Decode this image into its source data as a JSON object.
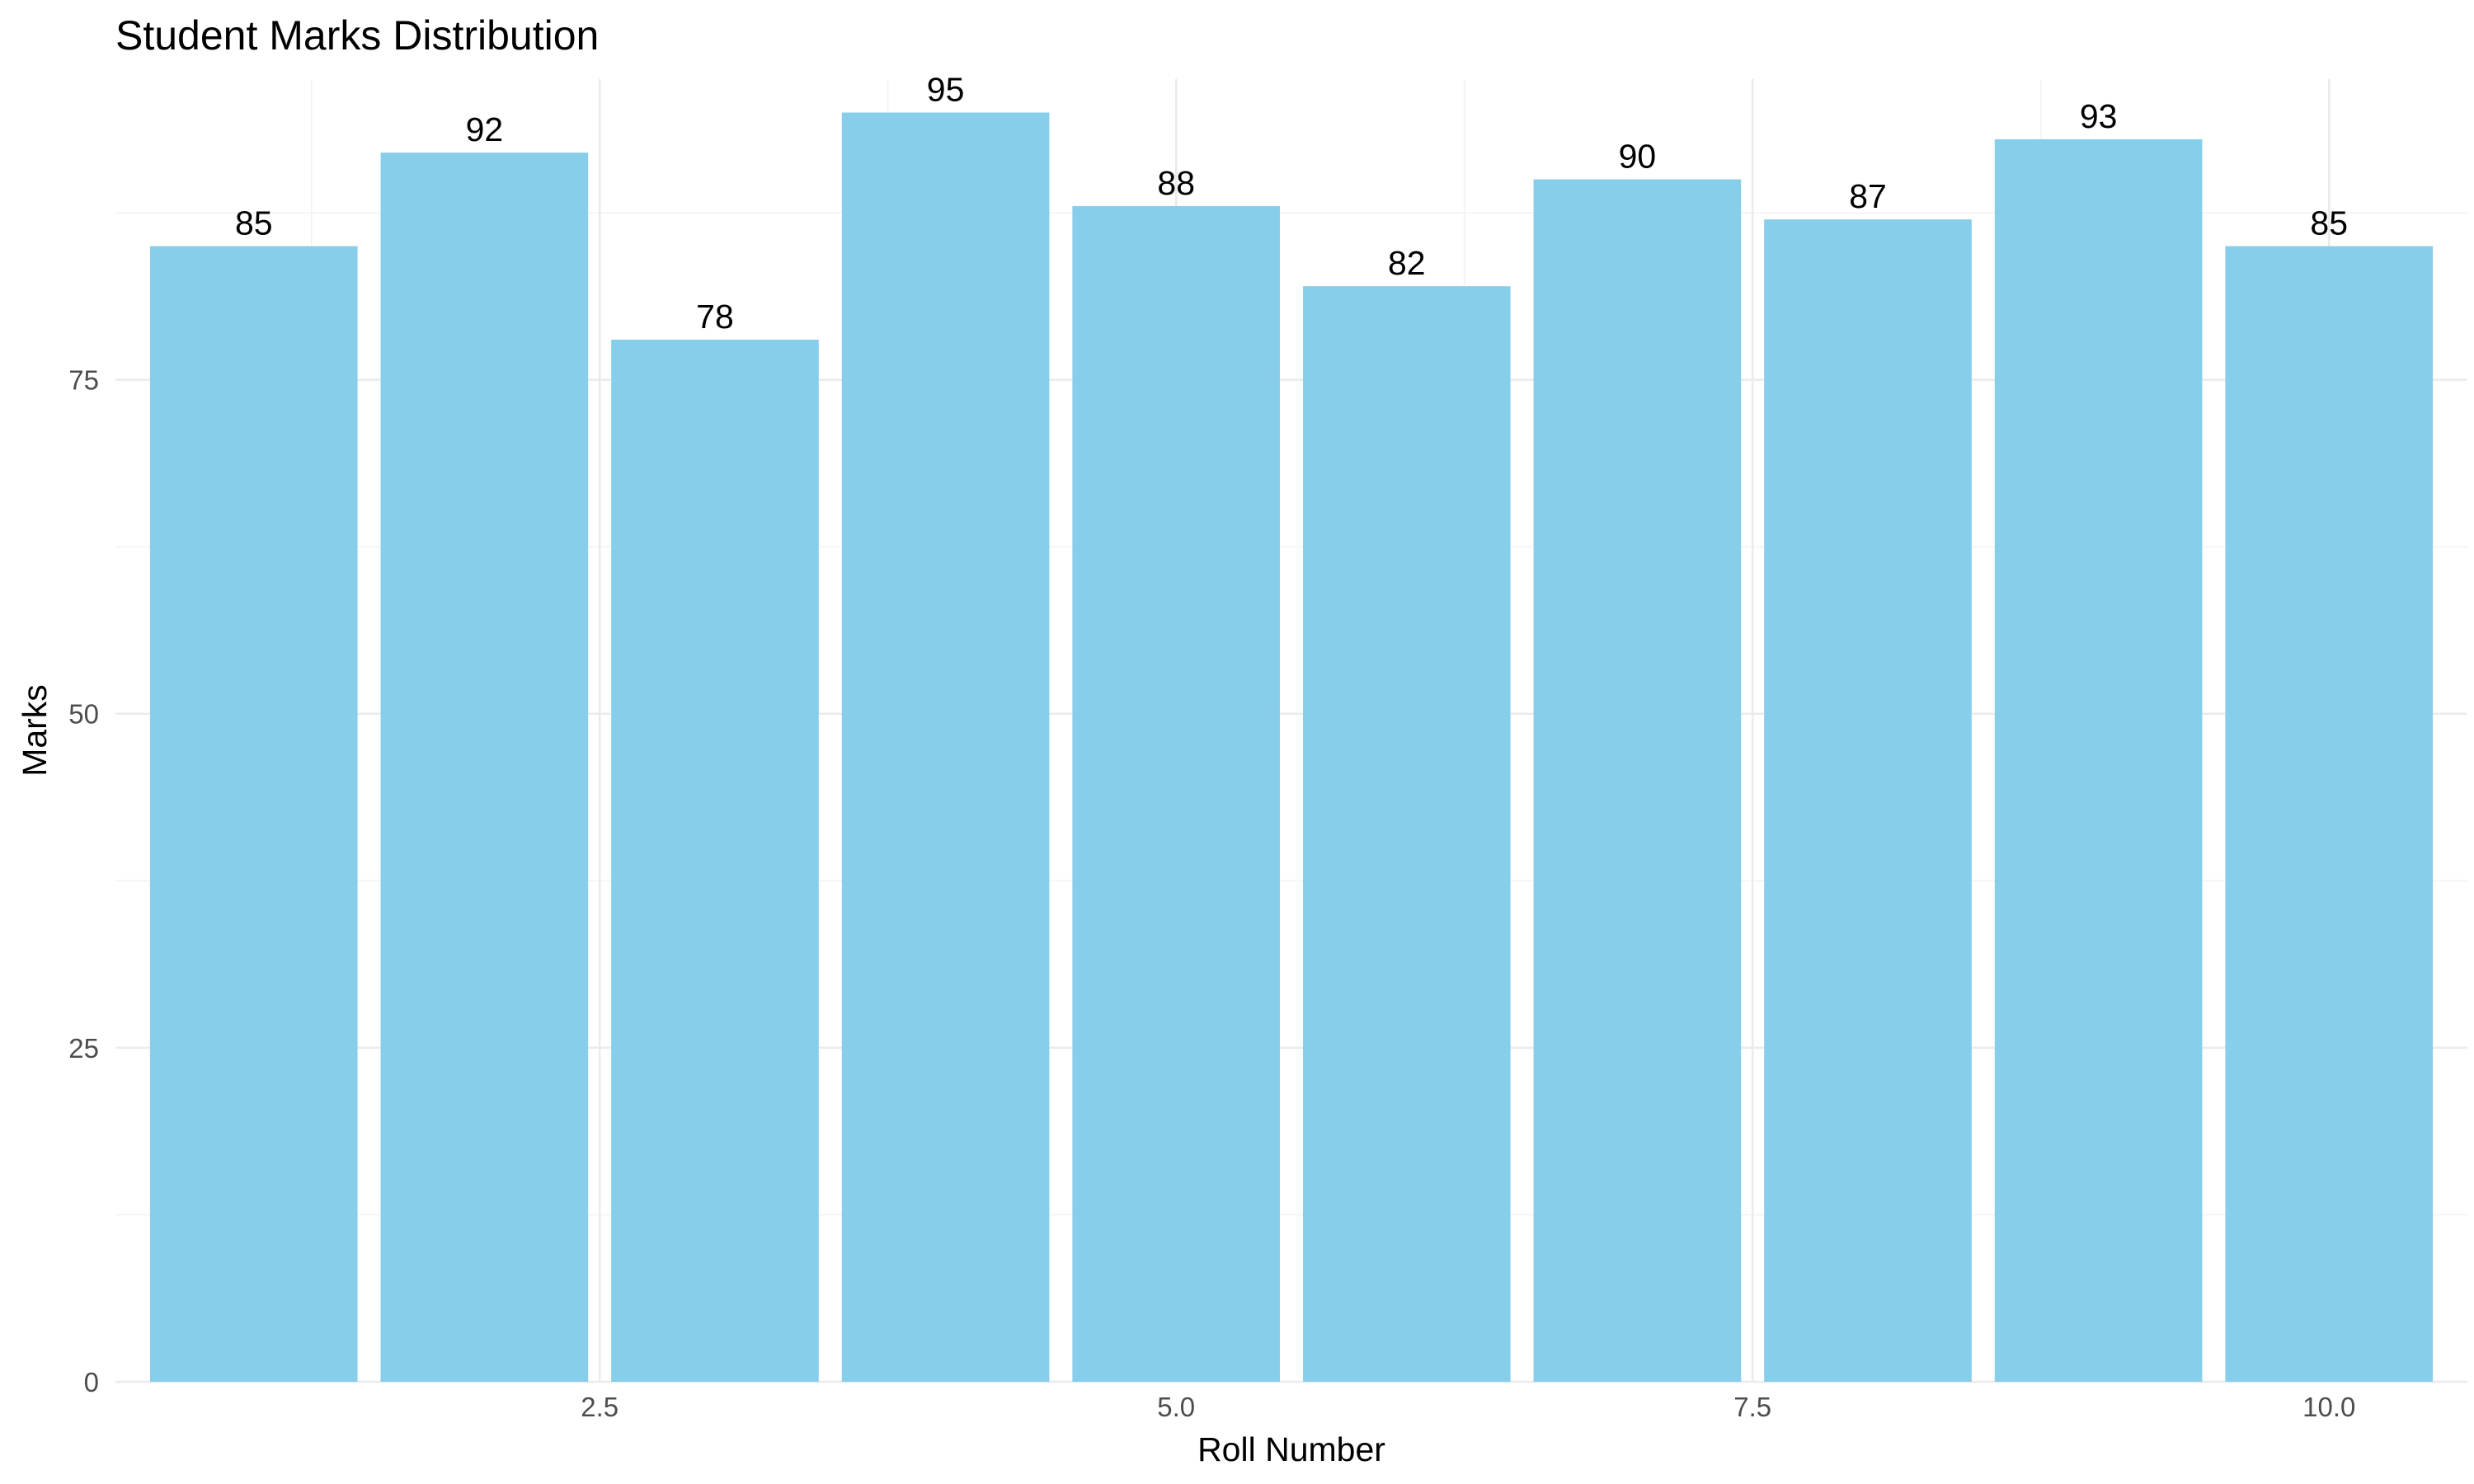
{
  "chart_data": {
    "type": "bar",
    "title": "Student Marks Distribution",
    "xlabel": "Roll Number",
    "ylabel": "Marks",
    "x": [
      1,
      2,
      3,
      4,
      5,
      6,
      7,
      8,
      9,
      10
    ],
    "values": [
      85,
      92,
      78,
      95,
      88,
      82,
      90,
      87,
      93,
      85
    ],
    "xlim": [
      0.4,
      10.6
    ],
    "ylim": [
      0,
      97.5
    ],
    "x_ticks": [
      2.5,
      5.0,
      7.5,
      10.0
    ],
    "x_tick_labels": [
      "2.5",
      "5.0",
      "7.5",
      "10.0"
    ],
    "y_ticks": [
      0,
      25,
      50,
      75
    ],
    "y_tick_labels": [
      "0",
      "25",
      "50",
      "75"
    ],
    "data_labels": [
      "85",
      "92",
      "78",
      "95",
      "88",
      "82",
      "90",
      "87",
      "93",
      "85"
    ],
    "bar_color": "#87CEEB",
    "grid": true,
    "legend": "none"
  }
}
